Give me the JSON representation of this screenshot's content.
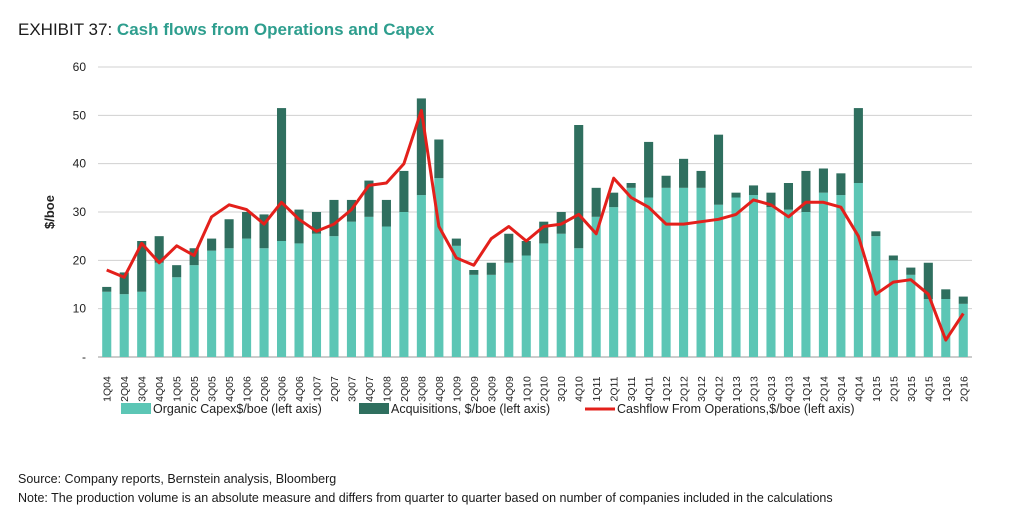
{
  "header": {
    "exhibit": "EXHIBIT 37:",
    "title": "Cash flows from Operations and Capex"
  },
  "footer": {
    "source": "Source: Company reports, Bernstein analysis, Bloomberg",
    "note": "Note: The production volume is an absolute measure and differs from quarter to quarter based on number of companies included in the calculations"
  },
  "colors": {
    "organic": "#5cc6b5",
    "acquisitions": "#2f6f5f",
    "cashflow": "#e3201b",
    "grid": "#d0d0d0"
  },
  "chart_data": {
    "type": "bar",
    "stacked": true,
    "ylabel": "$/boe",
    "ylim": [
      0,
      60
    ],
    "yticks": [
      "-",
      "10",
      "20",
      "30",
      "40",
      "50",
      "60"
    ],
    "grid": true,
    "legend_position": "bottom",
    "categories": [
      "1Q04",
      "2Q04",
      "3Q04",
      "4Q04",
      "1Q05",
      "2Q05",
      "3Q05",
      "4Q05",
      "1Q06",
      "2Q06",
      "3Q06",
      "4Q06",
      "1Q07",
      "2Q07",
      "3Q07",
      "4Q07",
      "1Q08",
      "2Q08",
      "3Q08",
      "4Q08",
      "1Q09",
      "2Q09",
      "3Q09",
      "4Q09",
      "1Q10",
      "2Q10",
      "3Q10",
      "4Q10",
      "1Q11",
      "2Q11",
      "3Q11",
      "4Q11",
      "1Q12",
      "2Q12",
      "3Q12",
      "4Q12",
      "1Q13",
      "2Q13",
      "3Q13",
      "4Q13",
      "1Q14",
      "2Q14",
      "3Q14",
      "4Q14",
      "1Q15",
      "2Q15",
      "3Q15",
      "4Q15",
      "1Q16",
      "2Q16"
    ],
    "series": [
      {
        "name": "Organic Capex$/boe (left axis)",
        "kind": "bar",
        "values": [
          13.5,
          13,
          13.5,
          19.5,
          16.5,
          19,
          22,
          22.5,
          24.5,
          22.5,
          24,
          23.5,
          25.5,
          25,
          28,
          29,
          27,
          30,
          33.5,
          37,
          23,
          17,
          17,
          19.5,
          21,
          23.5,
          25.5,
          22.5,
          29,
          31,
          35,
          33,
          35,
          35,
          35,
          31.5,
          33,
          33.5,
          31,
          30.5,
          30,
          34,
          33.5,
          36,
          25,
          20,
          17,
          12,
          12,
          11
        ]
      },
      {
        "name": "Acquisitions, $/boe (left axis)",
        "kind": "bar",
        "values": [
          1,
          4.5,
          10.5,
          5.5,
          2.5,
          3.5,
          2.5,
          6,
          5.5,
          7,
          27.5,
          7,
          4.5,
          7.5,
          4.5,
          7.5,
          5.5,
          8.5,
          20,
          8,
          1.5,
          1,
          2.5,
          6,
          3,
          4.5,
          4.5,
          25.5,
          6,
          3,
          1,
          11.5,
          2.5,
          6,
          3.5,
          14.5,
          1,
          2,
          3,
          5.5,
          8.5,
          5,
          4.5,
          15.5,
          1,
          1,
          1.5,
          7.5,
          2,
          1.5
        ]
      },
      {
        "name": "Cashflow From Operations,$/boe (left axis)",
        "kind": "line",
        "values": [
          18,
          16.5,
          23.5,
          19.5,
          23,
          21,
          29,
          31.5,
          30.5,
          27.5,
          32,
          28.5,
          26,
          27.5,
          30.5,
          35.5,
          36,
          40,
          51,
          27,
          20.5,
          19,
          24.5,
          27,
          24,
          27,
          27.5,
          29.5,
          25.5,
          37,
          33,
          31,
          27.5,
          27.5,
          28,
          28.5,
          29.5,
          32.5,
          31.5,
          29,
          32,
          32,
          31,
          25,
          13,
          15.5,
          16,
          13,
          3.5,
          9
        ]
      }
    ]
  }
}
